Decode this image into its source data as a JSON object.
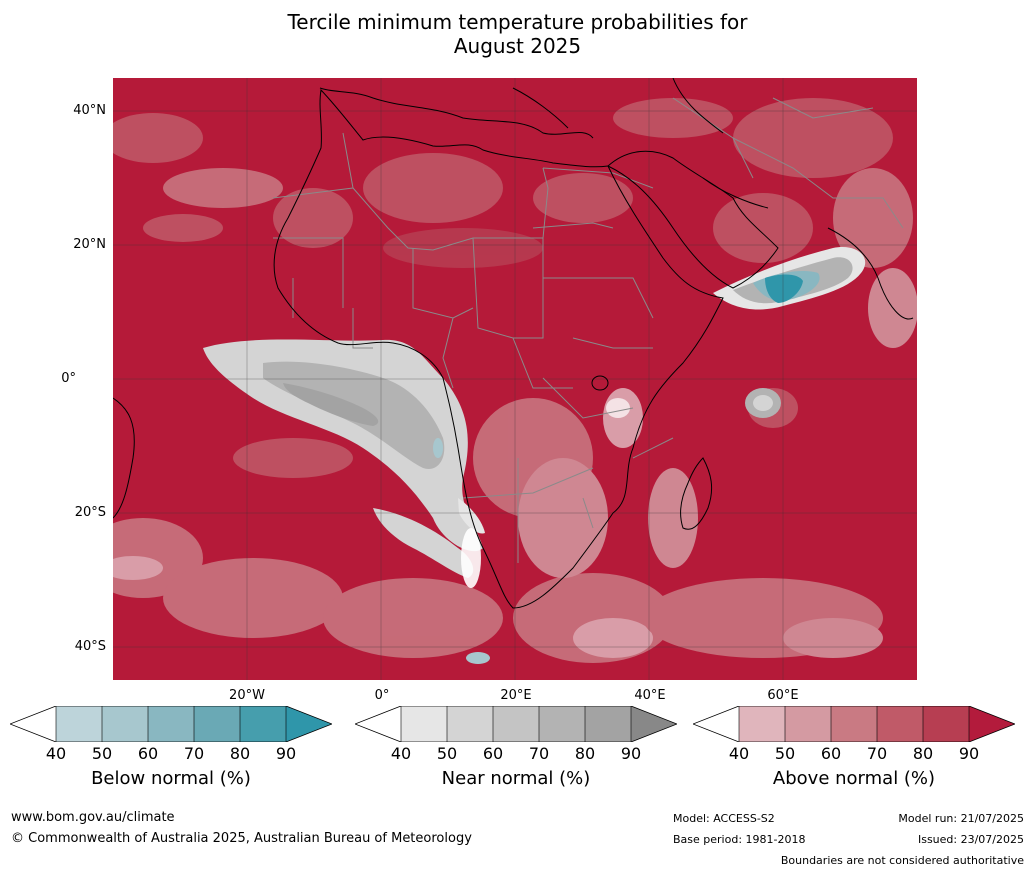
{
  "title_line1": "Tercile minimum temperature probabilities for",
  "title_line2": "August 2025",
  "map": {
    "lat_labels": [
      "40°N",
      "20°N",
      "0°",
      "20°S",
      "40°S"
    ],
    "lon_labels": [
      "20°W",
      "0°",
      "20°E",
      "40°E",
      "60°E"
    ],
    "colors": {
      "ocean_base": "#b51a39",
      "land_base": "#b51a39",
      "coast": "#000000",
      "borders": "#8a8a8a",
      "grid": "#333333"
    }
  },
  "colorbars": [
    {
      "name": "Below normal (%)",
      "ticks": [
        "40",
        "50",
        "60",
        "70",
        "80",
        "90"
      ],
      "colors": [
        "#ffffff",
        "#bdd4da",
        "#a7c7ce",
        "#89b7c1",
        "#6aa9b5",
        "#469ead",
        "#2f96aa"
      ]
    },
    {
      "name": "Near normal (%)",
      "ticks": [
        "40",
        "50",
        "60",
        "70",
        "80",
        "90"
      ],
      "colors": [
        "#ffffff",
        "#e6e6e6",
        "#d4d4d4",
        "#c4c4c4",
        "#b3b3b3",
        "#a3a3a3",
        "#888888"
      ]
    },
    {
      "name": "Above normal (%)",
      "ticks": [
        "40",
        "50",
        "60",
        "70",
        "80",
        "90"
      ],
      "colors": [
        "#ffffff",
        "#e0b5bc",
        "#d49aa2",
        "#c97a83",
        "#c05a68",
        "#b73e52",
        "#b31b3c"
      ]
    }
  ],
  "footer": {
    "website": "www.bom.gov.au/climate",
    "copyright": "© Commonwealth of Australia 2025, Australian Bureau of Meteorology",
    "model": "Model: ACCESS-S2",
    "base_period": "Base period: 1981-2018",
    "model_run": "Model run: 21/07/2025",
    "issued": "Issued: 23/07/2025",
    "disclaimer": "Boundaries are not considered authoritative"
  }
}
